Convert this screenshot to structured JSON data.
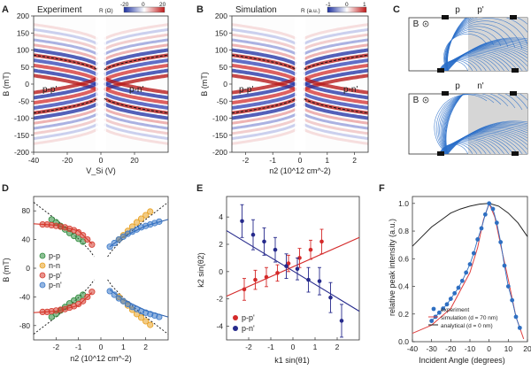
{
  "chart_data": [
    {
      "type": "heatmap",
      "panel": "A",
      "title": "Experiment",
      "xlabel": "V_Si (V)",
      "ylabel": "B (mT)",
      "xlim": [
        -40,
        40
      ],
      "ylim": [
        -200,
        200
      ],
      "xticks": [
        "-40",
        "-20",
        "0",
        "20"
      ],
      "yticks": [
        "200",
        "150",
        "100",
        "50",
        "0",
        "-50",
        "-100",
        "-150",
        "-200"
      ],
      "colorbar": {
        "label": "R (Ω)",
        "ticks": [
          "-20",
          "0",
          "20"
        ],
        "range": [
          -20,
          20
        ]
      },
      "annotations": [
        "p-p'",
        "p-n'"
      ]
    },
    {
      "type": "heatmap",
      "panel": "B",
      "title": "Simulation",
      "xlabel": "n2 (10^12 cm^-2)",
      "ylabel": "B (mT)",
      "xlim": [
        -2.5,
        2.5
      ],
      "ylim": [
        -200,
        200
      ],
      "xticks": [
        "-2",
        "-1",
        "0",
        "1",
        "2"
      ],
      "yticks": [
        "200",
        "150",
        "100",
        "50",
        "0",
        "-50",
        "-100",
        "-150",
        "-200"
      ],
      "colorbar": {
        "label": "R (a.u.)",
        "ticks": [
          "-1",
          "0",
          "1"
        ],
        "range": [
          -1,
          1
        ]
      },
      "annotations": [
        "p-p'",
        "p-n'"
      ]
    },
    {
      "type": "diagram",
      "panel": "C",
      "subpanels": [
        {
          "field": "B",
          "labels": [
            "p",
            "p'"
          ]
        },
        {
          "field": "B",
          "labels": [
            "p",
            "n'"
          ]
        }
      ]
    },
    {
      "type": "scatter",
      "panel": "D",
      "xlabel": "n2 (10^12 cm^-2)",
      "ylabel": "B (mT)",
      "xlim": [
        -3,
        3
      ],
      "ylim": [
        -100,
        100
      ],
      "xticks": [
        -2,
        -1,
        0,
        1,
        2
      ],
      "yticks": [
        80,
        40,
        0,
        -40,
        -80
      ],
      "legend": [
        "p-p",
        "n-n",
        "p-p'",
        "p-n'"
      ],
      "series": [
        {
          "name": "p-p",
          "color": "#2e8b3c",
          "x": [
            -2.2,
            -2.0,
            -1.8,
            -1.6,
            -1.4,
            -1.2,
            -1.0,
            -0.8
          ],
          "y_pos": [
            68,
            64,
            59,
            54,
            49,
            45,
            41,
            37
          ],
          "y_neg": [
            -68,
            -64,
            -59,
            -54,
            -49,
            -45,
            -41,
            -37
          ]
        },
        {
          "name": "n-n",
          "color": "#e8a020",
          "x": [
            0.8,
            1.0,
            1.2,
            1.4,
            1.6,
            1.8,
            2.0,
            2.2
          ],
          "y_pos": [
            40,
            46,
            52,
            58,
            64,
            69,
            74,
            79
          ],
          "y_neg": [
            -40,
            -46,
            -52,
            -58,
            -64,
            -69,
            -74,
            -79
          ]
        },
        {
          "name": "p-p'",
          "color": "#d63a2e",
          "x": [
            -2.6,
            -2.4,
            -2.2,
            -2.0,
            -1.8,
            -1.6,
            -1.4,
            -1.2,
            -1.0,
            -0.8,
            -0.6,
            -0.4
          ],
          "y_pos": [
            61,
            61,
            60,
            59,
            58,
            57,
            55,
            53,
            50,
            46,
            40,
            33
          ],
          "y_neg": [
            -61,
            -61,
            -60,
            -59,
            -58,
            -57,
            -55,
            -53,
            -50,
            -46,
            -40,
            -33
          ]
        },
        {
          "name": "p-n'",
          "color": "#3a78c8",
          "x": [
            0.4,
            0.6,
            0.8,
            1.0,
            1.2,
            1.4,
            1.6,
            1.8,
            2.0,
            2.2,
            2.4,
            2.6
          ],
          "y_pos": [
            30,
            35,
            40,
            44,
            48,
            51,
            54,
            57,
            59,
            61,
            63,
            65
          ],
          "y_neg": [
            -32,
            -37,
            -42,
            -46,
            -50,
            -54,
            -57,
            -60,
            -62,
            -64,
            -66,
            -68
          ]
        }
      ],
      "fit_lines": [
        {
          "name": "p-p' fit",
          "color": "#d63a2e",
          "x": [
            -3,
            -2,
            -1,
            -0.4
          ],
          "y": [
            62,
            60,
            52,
            34
          ]
        },
        {
          "name": "p-n' fit",
          "color": "#2f5fa8",
          "x": [
            0.4,
            1,
            2,
            3
          ],
          "y": [
            30,
            44,
            59,
            68
          ]
        },
        {
          "name": "p-p dashed",
          "x": [
            -3.0,
            -2.5,
            -2.0,
            -1.5,
            -1.0,
            -0.5,
            -0.3
          ],
          "y": [
            92,
            80,
            68,
            55,
            41,
            25,
            16
          ]
        },
        {
          "name": "n-n dashed",
          "x": [
            0.3,
            0.5,
            1.0,
            1.5,
            2.0,
            2.5,
            3.0
          ],
          "y": [
            16,
            25,
            41,
            55,
            68,
            80,
            92
          ]
        }
      ]
    },
    {
      "type": "scatter",
      "panel": "E",
      "xlabel": "k1 sin(θ1)",
      "ylabel": "k2 sin(θ2)",
      "xlim": [
        -3,
        3
      ],
      "ylim": [
        -5,
        5.5
      ],
      "xticks": [
        -2,
        -1,
        0,
        1,
        2
      ],
      "yticks": [
        4,
        2,
        0,
        -2,
        -4
      ],
      "legend": [
        "p-p'",
        "p-n'"
      ],
      "series": [
        {
          "name": "p-p'",
          "color": "#d42a2a",
          "x": [
            -2.2,
            -1.7,
            -1.2,
            -0.7,
            -0.2,
            0.3,
            0.8,
            1.3
          ],
          "y": [
            -1.3,
            -0.6,
            -0.4,
            -0.1,
            0.6,
            1.0,
            1.6,
            2.2
          ],
          "err": [
            0.8,
            0.7,
            0.7,
            0.6,
            0.6,
            0.7,
            0.7,
            0.9
          ]
        },
        {
          "name": "p-n'",
          "color": "#262a8c",
          "x": [
            -2.3,
            -1.8,
            -1.3,
            -0.8,
            -0.3,
            0.2,
            0.7,
            1.2,
            1.7,
            2.2
          ],
          "y": [
            3.7,
            2.7,
            2.2,
            1.6,
            0.4,
            0.2,
            -0.6,
            -0.7,
            -1.9,
            -3.6
          ],
          "err": [
            1.2,
            1.1,
            1.0,
            0.9,
            0.9,
            0.8,
            0.9,
            1.0,
            1.1,
            1.2
          ]
        }
      ],
      "fit_lines": [
        {
          "name": "p-p' fit",
          "color": "#d42a2a",
          "x": [
            -3,
            3
          ],
          "y": [
            -1.8,
            2.5
          ]
        },
        {
          "name": "p-n' fit",
          "color": "#262a8c",
          "x": [
            -3,
            3
          ],
          "y": [
            3.0,
            -2.9
          ]
        }
      ]
    },
    {
      "type": "line",
      "panel": "F",
      "xlabel": "Incident Angle (degrees)",
      "ylabel": "relative peak intensity (a.u.)",
      "xlim": [
        -40,
        20
      ],
      "ylim": [
        0,
        1.05
      ],
      "xticks": [
        -40,
        -30,
        -20,
        -10,
        0,
        10,
        20
      ],
      "yticks": [
        0.0,
        0.2,
        0.4,
        0.6,
        0.8,
        1.0
      ],
      "legend": [
        "experiment",
        "simulation (d = 70 nm)",
        "analytical (d = 0 nm)"
      ],
      "series": [
        {
          "name": "experiment",
          "color": "#2e6fc2",
          "x": [
            -30,
            -28,
            -26,
            -24,
            -22,
            -20,
            -18,
            -16,
            -14,
            -12,
            -10,
            -8,
            -6,
            -4,
            -2,
            0,
            2,
            4,
            6,
            8,
            10,
            12,
            14,
            16
          ],
          "y": [
            0.15,
            0.18,
            0.21,
            0.24,
            0.27,
            0.31,
            0.35,
            0.39,
            0.44,
            0.5,
            0.56,
            0.64,
            0.74,
            0.82,
            0.92,
            1.0,
            0.96,
            0.86,
            0.72,
            0.55,
            0.4,
            0.3,
            0.18,
            0.1
          ]
        },
        {
          "name": "simulation (d = 70 nm)",
          "color": "#e04040",
          "x": [
            -40,
            -30,
            -20,
            -10,
            -6,
            -3,
            0,
            3,
            6,
            10,
            14,
            18
          ],
          "y": [
            0.06,
            0.12,
            0.24,
            0.5,
            0.68,
            0.88,
            1.0,
            0.9,
            0.7,
            0.45,
            0.18,
            0.02
          ]
        },
        {
          "name": "analytical (d = 0 nm)",
          "color": "#222222",
          "x": [
            -40,
            -35,
            -30,
            -25,
            -20,
            -15,
            -10,
            -5,
            0,
            5,
            10,
            15,
            20
          ],
          "y": [
            0.69,
            0.76,
            0.83,
            0.88,
            0.93,
            0.96,
            0.98,
            0.995,
            1.0,
            0.98,
            0.93,
            0.86,
            0.76
          ]
        }
      ]
    }
  ]
}
